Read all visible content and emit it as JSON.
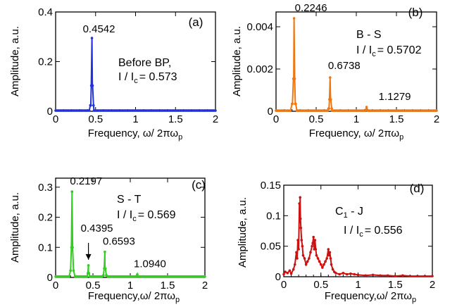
{
  "chart_data": [
    {
      "type": "line",
      "panel": "(a)",
      "color": "#2233dd",
      "xlabel": "Frequency,",
      "xlabel_math": "ω/ 2πω",
      "xlabel_sub": "p",
      "ylabel": "Amplitude, a.u.",
      "xlim": [
        0,
        2
      ],
      "ylim": [
        0,
        0.4
      ],
      "xticks": [
        "0",
        "0.5",
        "1",
        "1.5",
        "2"
      ],
      "yticks": [
        {
          "v": 0,
          "label": "0"
        },
        {
          "v": 0.2,
          "label": "0.2"
        },
        {
          "v": 0.4,
          "label": "0.4"
        }
      ],
      "peaks": [
        {
          "x": 0.4542,
          "y": 0.295,
          "label": "0.4542"
        }
      ],
      "baseline": 0.003,
      "annotation": {
        "line1": "Before BP,",
        "line2_pre": "I / I",
        "line2_sub": "c",
        "line2_post": "= 0.573"
      }
    },
    {
      "type": "line",
      "panel": "(b)",
      "color": "#ee7711",
      "xlabel": "Frequency,",
      "xlabel_math": "ω/ 2πω",
      "xlabel_sub": "p",
      "ylabel": "Amplitude, a.u.",
      "xlim": [
        0,
        2
      ],
      "ylim": [
        0,
        0.0047
      ],
      "xticks": [
        "0",
        "0.5",
        "1",
        "1.5",
        "2"
      ],
      "yticks": [
        {
          "v": 0,
          "label": "0"
        },
        {
          "v": 0.002,
          "label": "0.002"
        },
        {
          "v": 0.004,
          "label": "0.004"
        }
      ],
      "peaks": [
        {
          "x": 0.2246,
          "y": 0.0044,
          "label": "0.2246"
        },
        {
          "x": 0.6738,
          "y": 0.0016,
          "label": "0.6738"
        },
        {
          "x": 1.1279,
          "y": 0.0002,
          "label": "1.1279"
        }
      ],
      "baseline": 3e-05,
      "annotation": {
        "line1": "B - S",
        "line2_pre": "I / I",
        "line2_sub": "c",
        "line2_post": "= 0.5702"
      }
    },
    {
      "type": "line",
      "panel": "(c)",
      "color": "#33cc22",
      "xlabel": "Frequency,",
      "xlabel_math": "ω/ 2πω",
      "xlabel_sub": "p",
      "ylabel": "Amplitude, a.u.",
      "xlim": [
        0,
        2
      ],
      "ylim": [
        0,
        0.33
      ],
      "xticks": [
        "0",
        "0.5",
        "1",
        "1.5",
        "2"
      ],
      "yticks": [
        {
          "v": 0,
          "label": "0"
        },
        {
          "v": 0.1,
          "label": "0.1"
        },
        {
          "v": 0.2,
          "label": "0.2"
        },
        {
          "v": 0.3,
          "label": "0.3"
        }
      ],
      "peaks": [
        {
          "x": 0.2197,
          "y": 0.285,
          "label": "0.2197"
        },
        {
          "x": 0.4395,
          "y": 0.04,
          "label": "0.4395"
        },
        {
          "x": 0.6593,
          "y": 0.085,
          "label": "0.6593"
        },
        {
          "x": 1.094,
          "y": 0.01,
          "label": "1.0940"
        }
      ],
      "baseline": 0.003,
      "annotation": {
        "line1": "S - T",
        "line2_pre": "I / I",
        "line2_sub": "c",
        "line2_post": "= 0.569"
      },
      "arrow_to_peak": "0.4395"
    },
    {
      "type": "line",
      "panel": "(d)",
      "color": "#cc1111",
      "xlabel": "Frequency,",
      "xlabel_math": "ω/ 2πω",
      "xlabel_sub": "p",
      "ylabel": "Amplitude, a.u.",
      "xlim": [
        0,
        2
      ],
      "ylim": [
        0,
        0.15
      ],
      "xticks": [
        "0",
        "0.5",
        "1",
        "1.5",
        "2"
      ],
      "yticks": [
        {
          "v": 0,
          "label": "0"
        },
        {
          "v": 0.05,
          "label": "0.05"
        },
        {
          "v": 0.1,
          "label": "0.1"
        },
        {
          "v": 0.15,
          "label": "0.15"
        }
      ],
      "points": [
        [
          0.0,
          0.004
        ],
        [
          0.02,
          0.008
        ],
        [
          0.05,
          0.006
        ],
        [
          0.08,
          0.01
        ],
        [
          0.1,
          0.005
        ],
        [
          0.13,
          0.012
        ],
        [
          0.15,
          0.02
        ],
        [
          0.17,
          0.04
        ],
        [
          0.18,
          0.03
        ],
        [
          0.19,
          0.06
        ],
        [
          0.2,
          0.045
        ],
        [
          0.21,
          0.12
        ],
        [
          0.215,
          0.09
        ],
        [
          0.22,
          0.13
        ],
        [
          0.225,
          0.095
        ],
        [
          0.23,
          0.08
        ],
        [
          0.24,
          0.06
        ],
        [
          0.25,
          0.05
        ],
        [
          0.26,
          0.035
        ],
        [
          0.28,
          0.03
        ],
        [
          0.3,
          0.02
        ],
        [
          0.32,
          0.025
        ],
        [
          0.34,
          0.03
        ],
        [
          0.36,
          0.04
        ],
        [
          0.38,
          0.05
        ],
        [
          0.39,
          0.055
        ],
        [
          0.4,
          0.065
        ],
        [
          0.41,
          0.045
        ],
        [
          0.42,
          0.06
        ],
        [
          0.43,
          0.045
        ],
        [
          0.44,
          0.035
        ],
        [
          0.46,
          0.03
        ],
        [
          0.48,
          0.025
        ],
        [
          0.5,
          0.02
        ],
        [
          0.52,
          0.015
        ],
        [
          0.54,
          0.02
        ],
        [
          0.56,
          0.025
        ],
        [
          0.58,
          0.03
        ],
        [
          0.6,
          0.045
        ],
        [
          0.61,
          0.035
        ],
        [
          0.62,
          0.04
        ],
        [
          0.63,
          0.03
        ],
        [
          0.64,
          0.02
        ],
        [
          0.66,
          0.012
        ],
        [
          0.68,
          0.008
        ],
        [
          0.7,
          0.006
        ],
        [
          0.75,
          0.004
        ],
        [
          0.8,
          0.006
        ],
        [
          0.85,
          0.004
        ],
        [
          0.9,
          0.005
        ],
        [
          0.95,
          0.004
        ],
        [
          1.0,
          0.003
        ],
        [
          1.1,
          0.002
        ],
        [
          1.2,
          0.003
        ],
        [
          1.3,
          0.002
        ],
        [
          1.4,
          0.002
        ],
        [
          1.5,
          0.001
        ],
        [
          1.6,
          0.002
        ],
        [
          1.7,
          0.001
        ],
        [
          1.8,
          0.001
        ],
        [
          1.9,
          0.001
        ],
        [
          2.0,
          0.001
        ]
      ],
      "annotation": {
        "line1_pre": "C",
        "line1_sub": "1",
        "line1_post": " - J",
        "line2_pre": "I / I",
        "line2_sub": "c",
        "line2_post": "= 0.556"
      }
    }
  ]
}
